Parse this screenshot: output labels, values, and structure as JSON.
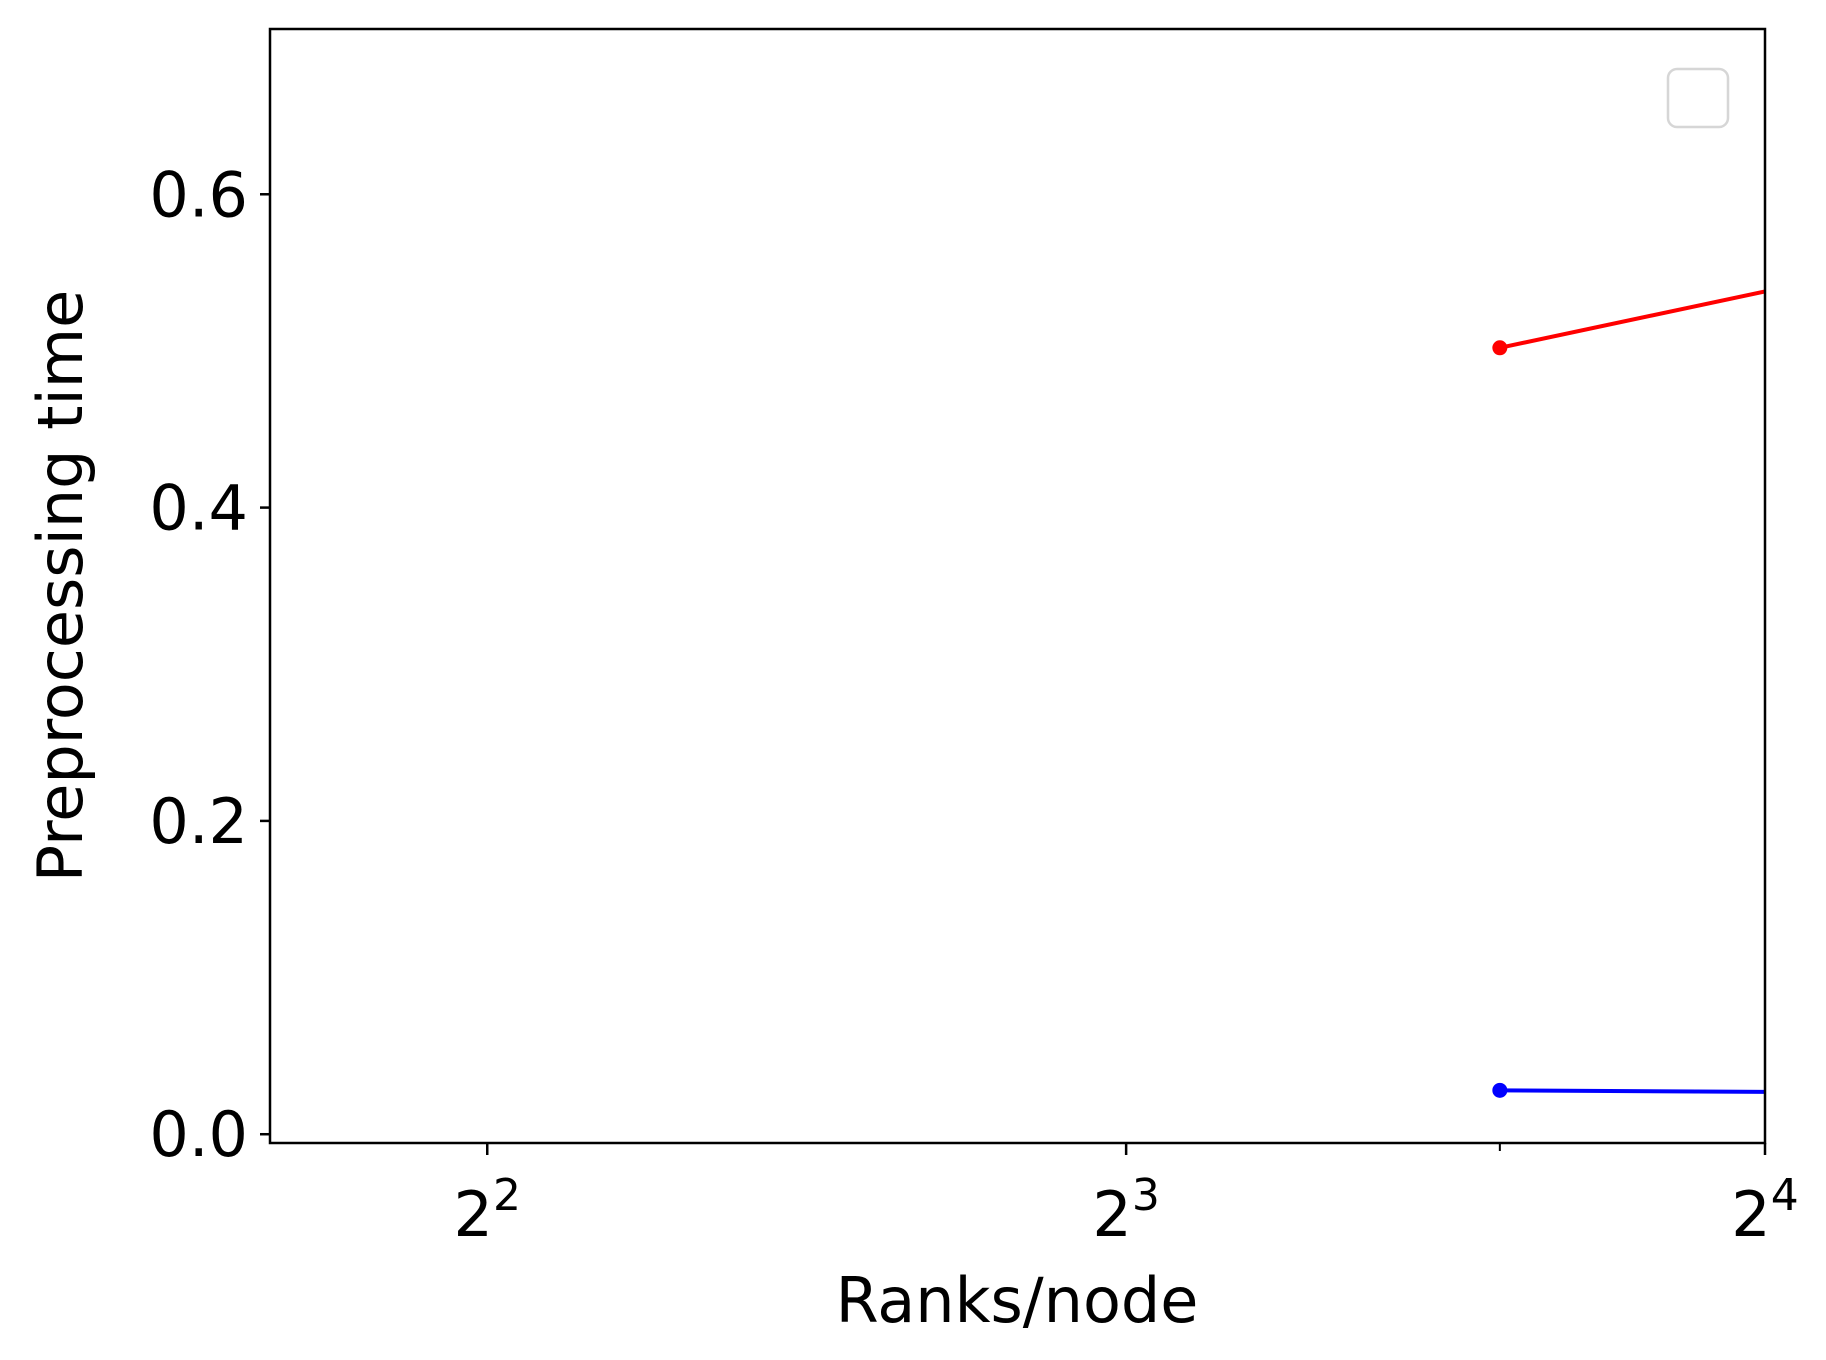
{
  "chart_data": {
    "type": "line",
    "title": "",
    "xlabel": "Ranks/node",
    "ylabel": "Preprocessing time",
    "x_scale": "log2",
    "xlim": [
      3.16,
      16
    ],
    "ylim": [
      -0.0056,
      0.7055
    ],
    "x_ticks": [
      {
        "value": 4,
        "base": "2",
        "exp": "2"
      },
      {
        "value": 8,
        "base": "2",
        "exp": "3"
      },
      {
        "value": 16,
        "base": "2",
        "exp": "4"
      }
    ],
    "x_minor_ticks": [
      12
    ],
    "y_ticks": [
      {
        "value": 0.0,
        "label": "0.0"
      },
      {
        "value": 0.2,
        "label": "0.2"
      },
      {
        "value": 0.4,
        "label": "0.4"
      },
      {
        "value": 0.6,
        "label": "0.6"
      }
    ],
    "grid": false,
    "legend": {
      "position": "top-right",
      "entries": []
    },
    "series": [
      {
        "color": "#ff0000",
        "x": [
          12,
          16
        ],
        "y": [
          0.502,
          0.538
        ],
        "markers": [
          12
        ]
      },
      {
        "color": "#0000ff",
        "x": [
          12,
          16
        ],
        "y": [
          0.028,
          0.027
        ],
        "markers": [
          12
        ]
      }
    ]
  }
}
